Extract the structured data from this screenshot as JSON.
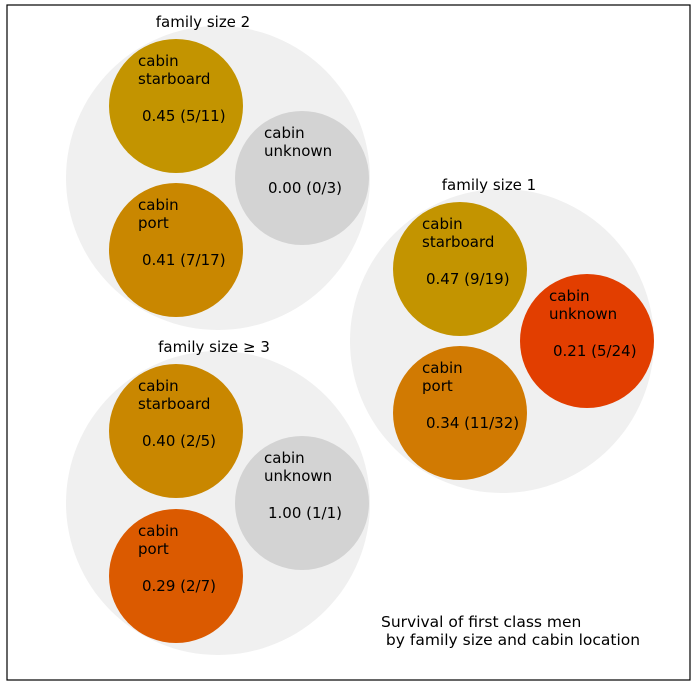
{
  "chart_data": {
    "type": "packed-bubble",
    "title_lines": [
      "Survival of first class men",
      " by family size and cabin location"
    ],
    "color_scale": {
      "low": "#e23a00",
      "mid": "#cf8500",
      "high": "#c39400",
      "no_data_color": "#d3d3d3"
    },
    "groups": [
      {
        "label": "family size 2",
        "cells": [
          {
            "label_line1": "cabin",
            "label_line2": "starboard",
            "rate": 0.45,
            "value_text": "0.45 (5/11)",
            "survived": 5,
            "total": 11,
            "color": "#c39400"
          },
          {
            "label_line1": "cabin",
            "label_line2": "unknown",
            "rate": 0.0,
            "value_text": "0.00 (0/3)",
            "survived": 0,
            "total": 3,
            "color": "#d3d3d3"
          },
          {
            "label_line1": "cabin",
            "label_line2": "port",
            "rate": 0.41,
            "value_text": "0.41 (7/17)",
            "survived": 7,
            "total": 17,
            "color": "#c98700"
          }
        ]
      },
      {
        "label": "family size 1",
        "cells": [
          {
            "label_line1": "cabin",
            "label_line2": "starboard",
            "rate": 0.47,
            "value_text": "0.47 (9/19)",
            "survived": 9,
            "total": 19,
            "color": "#c39400"
          },
          {
            "label_line1": "cabin",
            "label_line2": "unknown",
            "rate": 0.21,
            "value_text": "0.21 (5/24)",
            "survived": 5,
            "total": 24,
            "color": "#e23e00"
          },
          {
            "label_line1": "cabin",
            "label_line2": "port",
            "rate": 0.34,
            "value_text": "0.34 (11/32)",
            "survived": 11,
            "total": 32,
            "color": "#d17a02"
          }
        ]
      },
      {
        "label": "family size ≥ 3",
        "cells": [
          {
            "label_line1": "cabin",
            "label_line2": "starboard",
            "rate": 0.4,
            "value_text": "0.40 (2/5)",
            "survived": 2,
            "total": 5,
            "color": "#c98700"
          },
          {
            "label_line1": "cabin",
            "label_line2": "unknown",
            "rate": 1.0,
            "value_text": "1.00 (1/1)",
            "survived": 1,
            "total": 1,
            "color": "#d3d3d3"
          },
          {
            "label_line1": "cabin",
            "label_line2": "port",
            "rate": 0.29,
            "value_text": "0.29 (2/7)",
            "survived": 2,
            "total": 7,
            "color": "#db5a00"
          }
        ]
      }
    ]
  }
}
